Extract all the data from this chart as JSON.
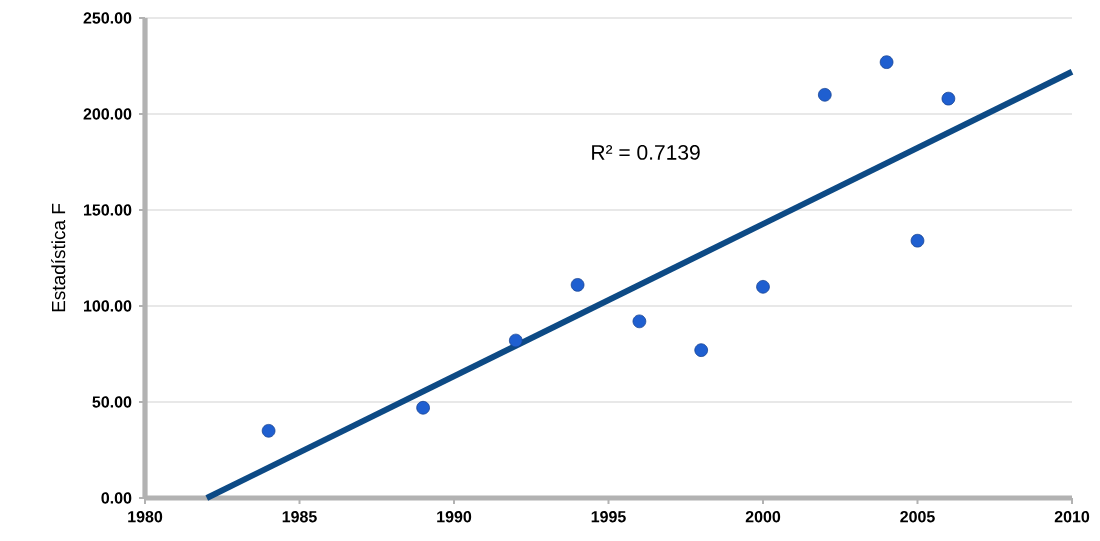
{
  "chart_data": {
    "type": "scatter",
    "ylabel": "Estadística F",
    "xlim": [
      1980,
      2010
    ],
    "ylim": [
      0,
      250
    ],
    "xticks": [
      1980,
      1985,
      1990,
      1995,
      2000,
      2005,
      2010
    ],
    "yticks": [
      {
        "value": 0,
        "label": "0.00"
      },
      {
        "value": 50,
        "label": "50.00"
      },
      {
        "value": 100,
        "label": "100.00"
      },
      {
        "value": 150,
        "label": "150.00"
      },
      {
        "value": 200,
        "label": "200.00"
      },
      {
        "value": 250,
        "label": "250.00"
      }
    ],
    "grid": "y",
    "marker": "circle",
    "series": [
      {
        "color": "#1f5fd0",
        "x": [
          1984,
          1989,
          1992,
          1994,
          1996,
          1998,
          2000,
          2002,
          2004,
          2005,
          2006
        ],
        "values": [
          35,
          47,
          82,
          111,
          92,
          77,
          110,
          210,
          227,
          134,
          208
        ]
      },
      {
        "type": "line",
        "color": "#0d4a85",
        "marker": "none",
        "x": [
          1982,
          2010
        ],
        "values": [
          0,
          222
        ]
      }
    ],
    "annotations": [
      "R² = 0.7139"
    ]
  }
}
